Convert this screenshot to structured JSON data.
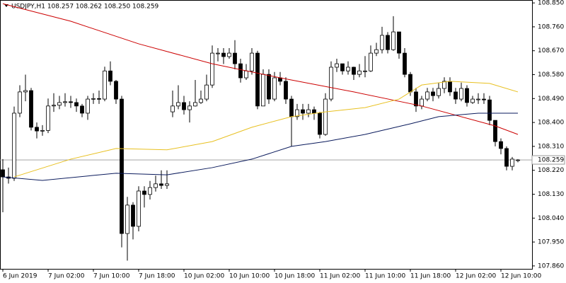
{
  "chart_data": {
    "type": "candlestick",
    "title": "USDJPY,H1  108.257 108.262 108.250 108.259",
    "categories": [
      "6 Jun 2019",
      "7 Jun 02:00",
      "7 Jun 10:00",
      "7 Jun 18:00",
      "10 Jun 02:00",
      "10 Jun 10:00",
      "10 Jun 18:00",
      "11 Jun 02:00",
      "11 Jun 10:00",
      "11 Jun 18:00",
      "12 Jun 02:00",
      "12 Jun 10:00"
    ],
    "label_every": 8,
    "open": [
      108.222,
      108.195,
      108.19,
      108.435,
      108.515,
      108.52,
      108.382,
      108.368,
      108.37,
      108.462,
      108.465,
      108.475,
      108.478,
      108.475,
      108.462,
      108.435,
      108.488,
      108.49,
      108.488,
      108.594,
      108.555,
      108.488,
      107.982,
      108.089,
      108.009,
      108.142,
      108.129,
      108.155,
      108.169,
      108.163,
      108.44,
      108.462,
      108.475,
      108.448,
      108.462,
      108.475,
      108.488,
      108.541,
      108.661,
      108.661,
      108.648,
      108.661,
      108.621,
      108.568,
      108.594,
      108.661,
      108.462,
      108.581,
      108.488,
      108.568,
      108.555,
      108.488,
      108.422,
      108.448,
      108.435,
      108.448,
      108.435,
      108.355,
      108.488,
      108.608,
      108.621,
      108.594,
      108.608,
      108.581,
      108.594,
      108.594,
      108.661,
      108.674,
      108.728,
      108.674,
      108.741,
      108.661,
      108.581,
      108.515,
      108.462,
      108.488,
      108.515,
      108.501,
      108.528,
      108.555,
      108.515,
      108.488,
      108.528,
      108.475,
      108.488,
      108.488,
      108.485,
      108.408,
      108.328,
      108.302,
      108.235,
      108.257
    ],
    "high": [
      108.262,
      108.23,
      108.46,
      108.54,
      108.58,
      108.53,
      108.4,
      108.39,
      108.49,
      108.51,
      108.5,
      108.51,
      108.5,
      108.49,
      108.47,
      108.5,
      108.51,
      108.52,
      108.61,
      108.63,
      108.56,
      108.5,
      108.12,
      108.1,
      108.16,
      108.16,
      108.18,
      108.2,
      108.22,
      108.22,
      108.52,
      108.54,
      108.5,
      108.48,
      108.56,
      108.52,
      108.58,
      108.69,
      108.68,
      108.68,
      108.68,
      108.71,
      108.64,
      108.62,
      108.68,
      108.67,
      108.6,
      108.6,
      108.59,
      108.59,
      108.57,
      108.5,
      108.47,
      108.47,
      108.47,
      108.46,
      108.44,
      108.51,
      108.63,
      108.64,
      108.62,
      108.63,
      108.61,
      108.62,
      108.65,
      108.69,
      108.7,
      108.76,
      108.74,
      108.8,
      108.74,
      108.68,
      108.59,
      108.53,
      108.5,
      108.53,
      108.53,
      108.55,
      108.57,
      108.57,
      108.53,
      108.55,
      108.54,
      108.5,
      108.51,
      108.51,
      108.5,
      108.4,
      108.34,
      108.31,
      108.27,
      108.262
    ],
    "low": [
      108.062,
      108.17,
      108.18,
      108.42,
      108.48,
      108.37,
      108.34,
      108.35,
      108.36,
      108.44,
      108.45,
      108.46,
      108.455,
      108.44,
      108.42,
      108.41,
      108.47,
      108.47,
      108.48,
      108.54,
      108.47,
      107.93,
      107.88,
      107.96,
      107.99,
      108.08,
      108.11,
      108.14,
      108.15,
      108.15,
      108.42,
      108.45,
      108.43,
      108.4,
      108.46,
      108.47,
      108.48,
      108.53,
      108.63,
      108.62,
      108.64,
      108.6,
      108.55,
      108.56,
      108.58,
      108.45,
      108.47,
      108.47,
      108.48,
      108.54,
      108.47,
      108.31,
      108.41,
      108.41,
      108.42,
      108.41,
      108.34,
      108.35,
      108.48,
      108.59,
      108.58,
      108.58,
      108.56,
      108.57,
      108.57,
      108.59,
      108.65,
      108.66,
      108.66,
      108.67,
      108.64,
      108.57,
      108.5,
      108.44,
      108.45,
      108.48,
      108.48,
      108.49,
      108.51,
      108.5,
      108.47,
      108.48,
      108.46,
      108.47,
      108.47,
      108.47,
      108.39,
      108.31,
      108.28,
      108.22,
      108.22,
      108.25
    ],
    "close": [
      108.195,
      108.19,
      108.435,
      108.515,
      108.52,
      108.382,
      108.368,
      108.37,
      108.462,
      108.465,
      108.475,
      108.478,
      108.475,
      108.462,
      108.435,
      108.488,
      108.49,
      108.488,
      108.594,
      108.555,
      108.488,
      107.982,
      108.089,
      108.009,
      108.142,
      108.129,
      108.155,
      108.169,
      108.163,
      108.169,
      108.462,
      108.475,
      108.448,
      108.462,
      108.475,
      108.488,
      108.541,
      108.661,
      108.661,
      108.648,
      108.661,
      108.621,
      108.568,
      108.594,
      108.661,
      108.462,
      108.581,
      108.488,
      108.568,
      108.555,
      108.488,
      108.422,
      108.448,
      108.435,
      108.448,
      108.435,
      108.355,
      108.488,
      108.608,
      108.621,
      108.594,
      108.608,
      108.581,
      108.594,
      108.594,
      108.661,
      108.674,
      108.728,
      108.674,
      108.741,
      108.661,
      108.581,
      108.515,
      108.462,
      108.488,
      108.515,
      108.501,
      108.528,
      108.555,
      108.515,
      108.488,
      108.528,
      108.475,
      108.488,
      108.488,
      108.485,
      108.408,
      108.328,
      108.302,
      108.235,
      108.262,
      108.259
    ],
    "up_color": "#ffffff",
    "down_color": "#000000",
    "lines": [
      {
        "color": "#cc0000",
        "x": [
          0,
          12,
          24,
          37,
          49,
          62,
          74,
          87,
          91
        ],
        "values": [
          108.847,
          108.781,
          108.696,
          108.621,
          108.568,
          108.515,
          108.462,
          108.387,
          108.355
        ]
      },
      {
        "color": "#e8c020",
        "x": [
          2,
          12,
          20,
          29,
          37,
          44,
          51,
          57,
          64,
          70,
          74,
          79,
          86,
          91
        ],
        "values": [
          108.195,
          108.262,
          108.302,
          108.297,
          108.328,
          108.382,
          108.422,
          108.44,
          108.456,
          108.488,
          108.541,
          108.555,
          108.547,
          108.515
        ]
      },
      {
        "color": "#0a1a5c",
        "x": [
          0,
          7,
          20,
          29,
          37,
          44,
          51,
          57,
          64,
          72,
          77,
          84,
          91
        ],
        "values": [
          108.195,
          108.182,
          108.209,
          108.203,
          108.23,
          108.262,
          108.31,
          108.328,
          108.355,
          108.395,
          108.422,
          108.435,
          108.435
        ]
      }
    ],
    "current_price": {
      "value": 108.259,
      "label": "108.259"
    },
    "ylim": [
      107.849,
      108.861
    ],
    "yticks": [
      {
        "value": 108.85,
        "label": "108.850"
      },
      {
        "value": 108.76,
        "label": "108.760"
      },
      {
        "value": 108.67,
        "label": "108.670"
      },
      {
        "value": 108.58,
        "label": "108.580"
      },
      {
        "value": 108.49,
        "label": "108.490"
      },
      {
        "value": 108.4,
        "label": "108.400"
      },
      {
        "value": 108.31,
        "label": "108.310"
      },
      {
        "value": 108.22,
        "label": "108.220"
      },
      {
        "value": 108.13,
        "label": "108.130"
      },
      {
        "value": 108.04,
        "label": "108.040"
      },
      {
        "value": 107.95,
        "label": "107.950"
      },
      {
        "value": 107.86,
        "label": "107.860"
      }
    ]
  }
}
